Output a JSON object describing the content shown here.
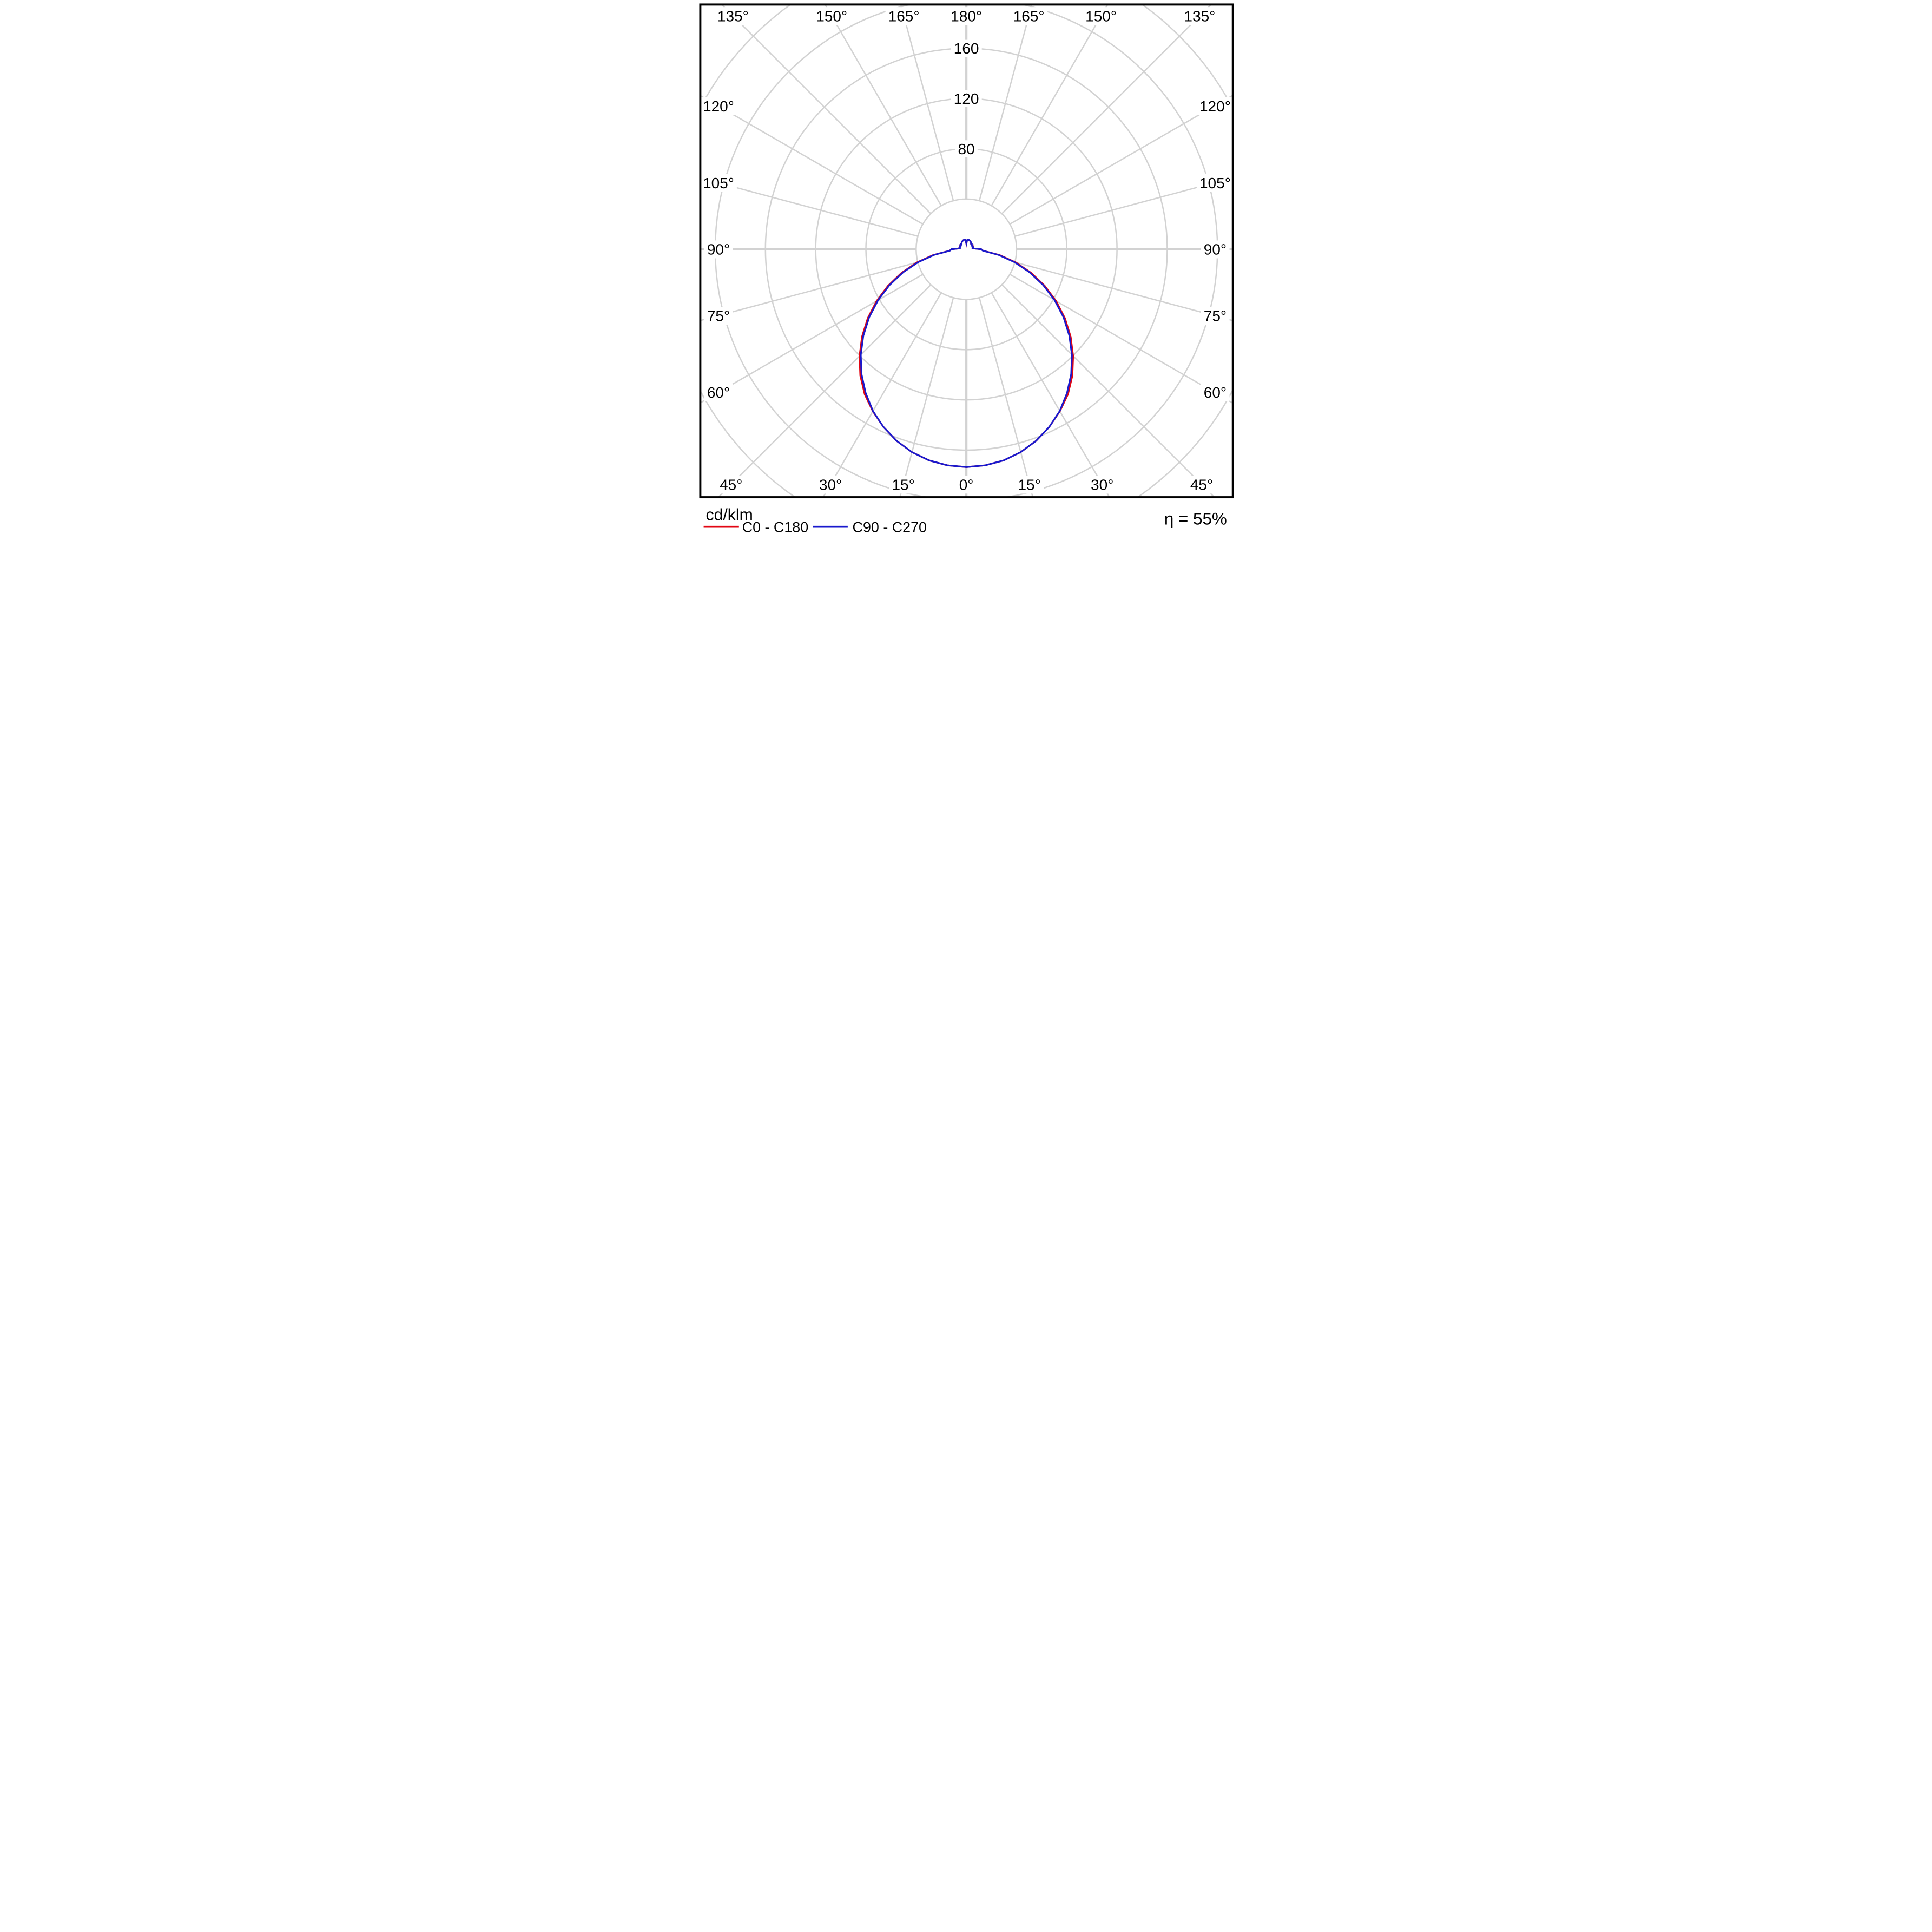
{
  "chart_data": {
    "type": "line",
    "polar": true,
    "description": "Luminous intensity distribution polar diagram",
    "title": "cd/klm",
    "efficiency": "η = 55%",
    "grid": true,
    "legend_position": "bottom-left",
    "angle_step_deg": 5,
    "angles_deg": [
      0,
      5,
      10,
      15,
      20,
      25,
      30,
      35,
      40,
      45,
      50,
      55,
      60,
      65,
      70,
      75,
      80,
      85,
      90,
      95,
      100,
      105,
      110,
      115,
      120,
      125,
      130,
      135,
      140,
      145,
      150,
      155,
      160,
      165,
      170,
      175,
      180
    ],
    "series": [
      {
        "name": "C0 - C180",
        "color": "#e20613",
        "values": [
          173.5,
          172.8,
          170.8,
          167.3,
          162.4,
          156.2,
          149.0,
          141.1,
          131.4,
          120.3,
          108.5,
          95.9,
          82.6,
          68.8,
          54.8,
          40.8,
          26.9,
          13.4,
          11.8,
          6.3,
          5.2,
          5.7,
          5.4,
          5.9,
          5.5,
          6.0,
          5.6,
          6.1,
          5.8,
          6.5,
          6.9,
          7.2,
          7.5,
          7.7,
          7.8,
          7.3,
          4.3
        ]
      },
      {
        "name": "C90 - C270",
        "color": "#1919cd",
        "values": [
          173.5,
          172.8,
          170.8,
          167.3,
          162.4,
          156.2,
          148.8,
          139.8,
          129.9,
          118.9,
          107.1,
          94.5,
          81.2,
          67.5,
          53.5,
          39.6,
          26.1,
          13.2,
          11.8,
          6.3,
          5.2,
          5.6,
          5.2,
          5.7,
          5.3,
          5.9,
          5.5,
          6.1,
          5.8,
          6.5,
          6.9,
          7.2,
          7.5,
          7.7,
          7.8,
          7.3,
          4.5
        ]
      }
    ],
    "radial_grid_values": [
      40,
      80,
      120,
      160,
      200,
      240
    ],
    "radial_ticks": [
      {
        "value": 80,
        "label": "80"
      },
      {
        "value": 120,
        "label": "120"
      },
      {
        "value": 160,
        "label": "160"
      }
    ],
    "angular_tick_labels": [
      {
        "deg": 0,
        "label": "0°"
      },
      {
        "deg": 15,
        "label": "15°"
      },
      {
        "deg": 30,
        "label": "30°"
      },
      {
        "deg": 45,
        "label": "45°"
      },
      {
        "deg": 60,
        "label": "60°"
      },
      {
        "deg": 75,
        "label": "75°"
      },
      {
        "deg": 90,
        "label": "90°"
      },
      {
        "deg": 105,
        "label": "105°"
      },
      {
        "deg": 120,
        "label": "120°"
      },
      {
        "deg": 135,
        "label": "135°"
      },
      {
        "deg": 150,
        "label": "150°"
      },
      {
        "deg": 165,
        "label": "165°"
      },
      {
        "deg": 180,
        "label": "180°"
      }
    ]
  },
  "legend": {
    "title": "cd/klm",
    "efficiency": "η = 55%"
  }
}
